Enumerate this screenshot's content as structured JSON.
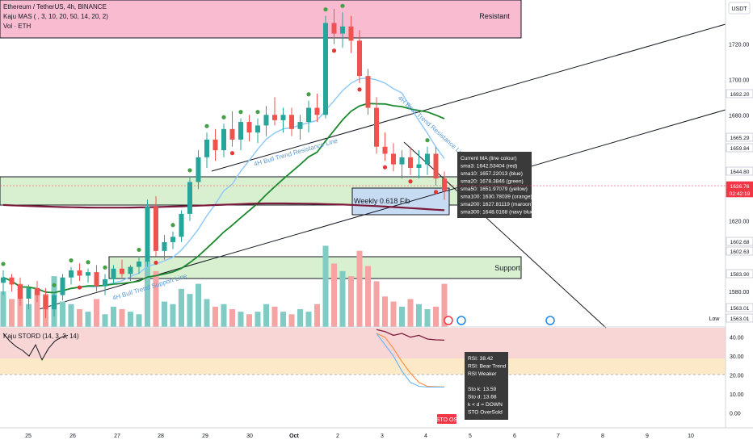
{
  "header": {
    "symbol": "Ethereum / TetherUS, 4h, BINANCE",
    "indicator_ma": "Kaju MAS ( , 3, 10, 20, 50, 14, 20, 2)",
    "indicator_vol": "Vol · ETH",
    "currency": "USDT"
  },
  "zones": {
    "resistant": "Resistant",
    "support": "Support",
    "weekly_fib": "Weekly 0.618 Fib"
  },
  "trendlines": {
    "bull_resistance": "4H Bull Trend Resistance Line",
    "bull_support": "4H Bull Trend Support Line",
    "bear_resistance": "4H Bear Trend Resistance Line"
  },
  "price_axis": {
    "ticks": [
      "1720.00",
      "1700.00",
      "1680.00",
      "1620.00",
      "1580.00"
    ],
    "badges": [
      {
        "text": "1692.20",
        "color": "#ffffff",
        "bg": "#ffffff",
        "fg": "#131722"
      },
      {
        "text": "1665.29",
        "bg": "#ffffff",
        "fg": "#131722"
      },
      {
        "text": "1659.84",
        "bg": "#ffffff",
        "fg": "#131722"
      },
      {
        "text": "1644.80",
        "bg": "#ffffff",
        "fg": "#131722"
      },
      {
        "text": "1636.76",
        "bg": "#f23645",
        "fg": "#ffffff"
      },
      {
        "text": "02:42:19",
        "bg": "#f23645",
        "fg": "#ffffff"
      },
      {
        "text": "1602.68",
        "bg": "#ffffff",
        "fg": "#131722"
      },
      {
        "text": "1602.63",
        "bg": "#ffffff",
        "fg": "#131722"
      },
      {
        "text": "1583.90",
        "bg": "#ffffff",
        "fg": "#131722"
      },
      {
        "text": "1563.01",
        "bg": "#ffffff",
        "fg": "#131722"
      },
      {
        "text": "1563.01",
        "bg": "#ffffff",
        "fg": "#131722"
      }
    ],
    "low_label": "Low"
  },
  "info_box": [
    "Current MA (line colour)",
    "sma3: 1642.53404 (red)",
    "sma10: 1657.22013 (blue)",
    "sma20: 1678.3846 (green)",
    "sma50: 1651.97079 (yellow)",
    "sma100: 1630.78039 (orange)",
    "sma200: 1627.81119 (maroon)",
    "sma300: 1648.0168 (navy blue)"
  ],
  "stoch_panel": {
    "title": "Kaju STORD (14, 3, 3, 14)",
    "ticks": [
      "40.00",
      "30.00",
      "20.00",
      "10.00",
      "0.00"
    ],
    "box": [
      "RSI: 38.42",
      "RSI: Bear Trend",
      "RSI Weaker",
      "",
      "Sto k: 13.59",
      "Sto d: 13.68",
      "k < d = DOWN",
      "STO OverSold"
    ],
    "badge": "STO OS"
  },
  "time_axis": [
    "25",
    "26",
    "27",
    "28",
    "29",
    "30",
    "Oct",
    "2",
    "3",
    "4",
    "5",
    "6",
    "7",
    "8",
    "9",
    "10"
  ],
  "colors": {
    "up": "#26a69a",
    "down": "#ef5350",
    "sma10": "#90caf9",
    "sma20": "#1b8a2e",
    "sma200": "#7b1b3a",
    "resistant_zone": "#f8bbd0",
    "support_zone": "#d9f0d0",
    "fib_zone": "#c7dcf3"
  },
  "chart_data": {
    "type": "candlestick",
    "title": "Ethereum / TetherUS, 4h, BINANCE",
    "y_unit": "USDT",
    "ylim": [
      1560,
      1745
    ],
    "x_labels": [
      "25",
      "26",
      "27",
      "28",
      "29",
      "30",
      "Oct",
      "2",
      "3",
      "4"
    ],
    "candles": [
      {
        "o": 1585,
        "h": 1592,
        "l": 1578,
        "c": 1588
      },
      {
        "o": 1588,
        "h": 1590,
        "l": 1580,
        "c": 1584
      },
      {
        "o": 1584,
        "h": 1588,
        "l": 1572,
        "c": 1576
      },
      {
        "o": 1576,
        "h": 1584,
        "l": 1570,
        "c": 1582
      },
      {
        "o": 1582,
        "h": 1586,
        "l": 1574,
        "c": 1578
      },
      {
        "o": 1578,
        "h": 1582,
        "l": 1565,
        "c": 1570
      },
      {
        "o": 1570,
        "h": 1580,
        "l": 1566,
        "c": 1578
      },
      {
        "o": 1578,
        "h": 1590,
        "l": 1575,
        "c": 1588
      },
      {
        "o": 1588,
        "h": 1594,
        "l": 1584,
        "c": 1592
      },
      {
        "o": 1592,
        "h": 1596,
        "l": 1586,
        "c": 1589
      },
      {
        "o": 1589,
        "h": 1593,
        "l": 1585,
        "c": 1591
      },
      {
        "o": 1591,
        "h": 1595,
        "l": 1580,
        "c": 1583
      },
      {
        "o": 1583,
        "h": 1590,
        "l": 1578,
        "c": 1587
      },
      {
        "o": 1587,
        "h": 1595,
        "l": 1584,
        "c": 1593
      },
      {
        "o": 1593,
        "h": 1598,
        "l": 1588,
        "c": 1590
      },
      {
        "o": 1590,
        "h": 1595,
        "l": 1586,
        "c": 1594
      },
      {
        "o": 1594,
        "h": 1600,
        "l": 1590,
        "c": 1597
      },
      {
        "o": 1597,
        "h": 1632,
        "l": 1594,
        "c": 1628
      },
      {
        "o": 1628,
        "h": 1634,
        "l": 1600,
        "c": 1603
      },
      {
        "o": 1603,
        "h": 1612,
        "l": 1598,
        "c": 1608
      },
      {
        "o": 1608,
        "h": 1614,
        "l": 1604,
        "c": 1611
      },
      {
        "o": 1611,
        "h": 1626,
        "l": 1608,
        "c": 1624
      },
      {
        "o": 1624,
        "h": 1645,
        "l": 1620,
        "c": 1642
      },
      {
        "o": 1642,
        "h": 1660,
        "l": 1638,
        "c": 1656
      },
      {
        "o": 1656,
        "h": 1670,
        "l": 1650,
        "c": 1666
      },
      {
        "o": 1666,
        "h": 1672,
        "l": 1654,
        "c": 1660
      },
      {
        "o": 1660,
        "h": 1675,
        "l": 1656,
        "c": 1672
      },
      {
        "o": 1672,
        "h": 1682,
        "l": 1662,
        "c": 1666
      },
      {
        "o": 1666,
        "h": 1678,
        "l": 1660,
        "c": 1676
      },
      {
        "o": 1676,
        "h": 1680,
        "l": 1665,
        "c": 1670
      },
      {
        "o": 1670,
        "h": 1678,
        "l": 1664,
        "c": 1674
      },
      {
        "o": 1674,
        "h": 1685,
        "l": 1668,
        "c": 1680
      },
      {
        "o": 1680,
        "h": 1690,
        "l": 1674,
        "c": 1677
      },
      {
        "o": 1677,
        "h": 1684,
        "l": 1670,
        "c": 1680
      },
      {
        "o": 1680,
        "h": 1684,
        "l": 1668,
        "c": 1672
      },
      {
        "o": 1672,
        "h": 1680,
        "l": 1666,
        "c": 1676
      },
      {
        "o": 1676,
        "h": 1688,
        "l": 1670,
        "c": 1684
      },
      {
        "o": 1684,
        "h": 1692,
        "l": 1676,
        "c": 1680
      },
      {
        "o": 1680,
        "h": 1736,
        "l": 1678,
        "c": 1732
      },
      {
        "o": 1732,
        "h": 1740,
        "l": 1720,
        "c": 1726
      },
      {
        "o": 1726,
        "h": 1738,
        "l": 1718,
        "c": 1730
      },
      {
        "o": 1730,
        "h": 1736,
        "l": 1715,
        "c": 1722
      },
      {
        "o": 1722,
        "h": 1728,
        "l": 1698,
        "c": 1702
      },
      {
        "o": 1702,
        "h": 1706,
        "l": 1680,
        "c": 1684
      },
      {
        "o": 1684,
        "h": 1690,
        "l": 1658,
        "c": 1662
      },
      {
        "o": 1662,
        "h": 1670,
        "l": 1654,
        "c": 1658
      },
      {
        "o": 1658,
        "h": 1664,
        "l": 1648,
        "c": 1652
      },
      {
        "o": 1652,
        "h": 1660,
        "l": 1644,
        "c": 1656
      },
      {
        "o": 1656,
        "h": 1662,
        "l": 1646,
        "c": 1650
      },
      {
        "o": 1650,
        "h": 1660,
        "l": 1644,
        "c": 1652
      },
      {
        "o": 1652,
        "h": 1662,
        "l": 1646,
        "c": 1658
      },
      {
        "o": 1658,
        "h": 1662,
        "l": 1640,
        "c": 1644
      },
      {
        "o": 1644,
        "h": 1648,
        "l": 1632,
        "c": 1637
      }
    ],
    "volume": [
      28,
      22,
      34,
      18,
      30,
      26,
      40,
      20,
      18,
      14,
      12,
      22,
      10,
      16,
      14,
      12,
      10,
      52,
      44,
      20,
      18,
      30,
      26,
      34,
      22,
      16,
      18,
      14,
      12,
      10,
      12,
      18,
      16,
      12,
      10,
      14,
      12,
      18,
      64,
      50,
      44,
      40,
      60,
      48,
      36,
      24,
      20,
      16,
      22,
      18,
      14,
      16,
      34
    ],
    "levels": [
      {
        "name": "Resistant",
        "low": 1726,
        "high": 1745
      },
      {
        "name": "Support",
        "low": 1580,
        "high": 1590
      },
      {
        "name": "Weekly 0.618 Fib",
        "low": 1621,
        "high": 1636
      }
    ],
    "stoch": {
      "ylim": [
        -8,
        45
      ],
      "ticks": [
        40,
        30,
        20,
        10,
        0
      ],
      "k": [
        null,
        null,
        null,
        null,
        null,
        null,
        null,
        null,
        null,
        null,
        null,
        null,
        null,
        null,
        null,
        null,
        null,
        null,
        null,
        null,
        null,
        null,
        null,
        null,
        null,
        null,
        null,
        null,
        null,
        null,
        null,
        null,
        null,
        null,
        null,
        null,
        null,
        null,
        null,
        null,
        null,
        null,
        null,
        null,
        42,
        36,
        30,
        22,
        16,
        14,
        13.6,
        13.59,
        13.59
      ],
      "d": [
        null,
        null,
        null,
        null,
        null,
        null,
        null,
        null,
        null,
        null,
        null,
        null,
        null,
        null,
        null,
        null,
        null,
        null,
        null,
        null,
        null,
        null,
        null,
        null,
        null,
        null,
        null,
        null,
        null,
        null,
        null,
        null,
        null,
        null,
        null,
        null,
        null,
        null,
        null,
        null,
        null,
        null,
        null,
        null,
        42,
        40,
        34,
        27,
        21,
        16,
        14,
        13.8,
        13.68
      ],
      "rsi": [
        null,
        null,
        null,
        null,
        null,
        null,
        null,
        null,
        null,
        null,
        null,
        null,
        null,
        null,
        null,
        null,
        null,
        null,
        null,
        null,
        null,
        null,
        null,
        null,
        null,
        null,
        null,
        null,
        null,
        null,
        null,
        null,
        null,
        null,
        null,
        null,
        null,
        null,
        null,
        null,
        null,
        null,
        null,
        null,
        44,
        43,
        41,
        42,
        40,
        41,
        39,
        38.6,
        38.42
      ]
    }
  }
}
